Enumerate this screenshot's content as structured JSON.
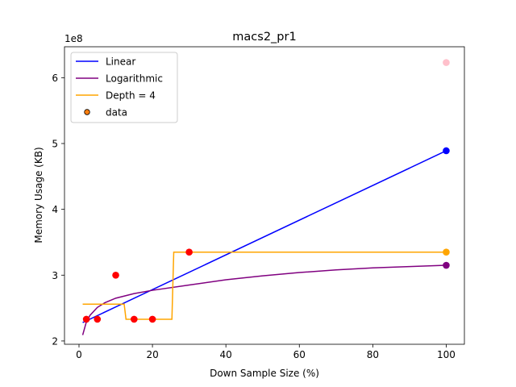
{
  "chart_data": {
    "type": "line",
    "title": "macs2_pr1",
    "xlabel": "Down Sample Size (%)",
    "ylabel": "Memory Usage (KB)",
    "y_offset_label": "1e8",
    "xlim": [
      -3.95,
      104.95
    ],
    "ylim": [
      1.95,
      6.47
    ],
    "x_ticks": [
      0,
      20,
      40,
      60,
      80,
      100
    ],
    "x_tick_labels": [
      "0",
      "20",
      "40",
      "60",
      "80",
      "100"
    ],
    "y_ticks": [
      2,
      3,
      4,
      5,
      6
    ],
    "y_tick_labels": [
      "2",
      "3",
      "4",
      "5",
      "6"
    ],
    "grid": false,
    "legend_position": "top-left",
    "legend": [
      {
        "label": "Linear",
        "kind": "line",
        "color": "#0000ff"
      },
      {
        "label": "Logarithmic",
        "kind": "line",
        "color": "#800080"
      },
      {
        "label": "Depth = 4",
        "kind": "line",
        "color": "#ffa500"
      },
      {
        "label": "data",
        "kind": "marker",
        "color": "#ff7f0e"
      }
    ],
    "series": [
      {
        "name": "Linear",
        "color": "#0000ff",
        "x": [
          1,
          100
        ],
        "y": [
          2.28,
          4.89
        ]
      },
      {
        "name": "Logarithmic",
        "color": "#800080",
        "x": [
          1,
          2,
          3,
          5,
          7,
          10,
          15,
          20,
          30,
          40,
          50,
          60,
          70,
          80,
          90,
          100
        ],
        "y": [
          2.09,
          2.29,
          2.39,
          2.51,
          2.58,
          2.65,
          2.72,
          2.77,
          2.85,
          2.93,
          2.99,
          3.04,
          3.08,
          3.11,
          3.13,
          3.15
        ]
      },
      {
        "name": "Depth = 4",
        "color": "#ffa500",
        "x": [
          1,
          12.3,
          12.8,
          25.3,
          25.8,
          100
        ],
        "y": [
          2.56,
          2.56,
          2.33,
          2.33,
          3.35,
          3.35
        ]
      },
      {
        "name": "data",
        "kind": "scatter",
        "x": [
          2,
          5,
          10,
          15,
          20,
          30,
          100,
          100,
          100,
          100
        ],
        "y": [
          2.33,
          2.33,
          3.0,
          2.33,
          2.33,
          3.35,
          6.23,
          4.89,
          3.35,
          3.15
        ],
        "colors": [
          "#ff0000",
          "#ff0000",
          "#ff0000",
          "#ff0000",
          "#ff0000",
          "#ff0000",
          "#ffc0cb",
          "#0000ff",
          "#ffa500",
          "#800080"
        ]
      }
    ]
  }
}
